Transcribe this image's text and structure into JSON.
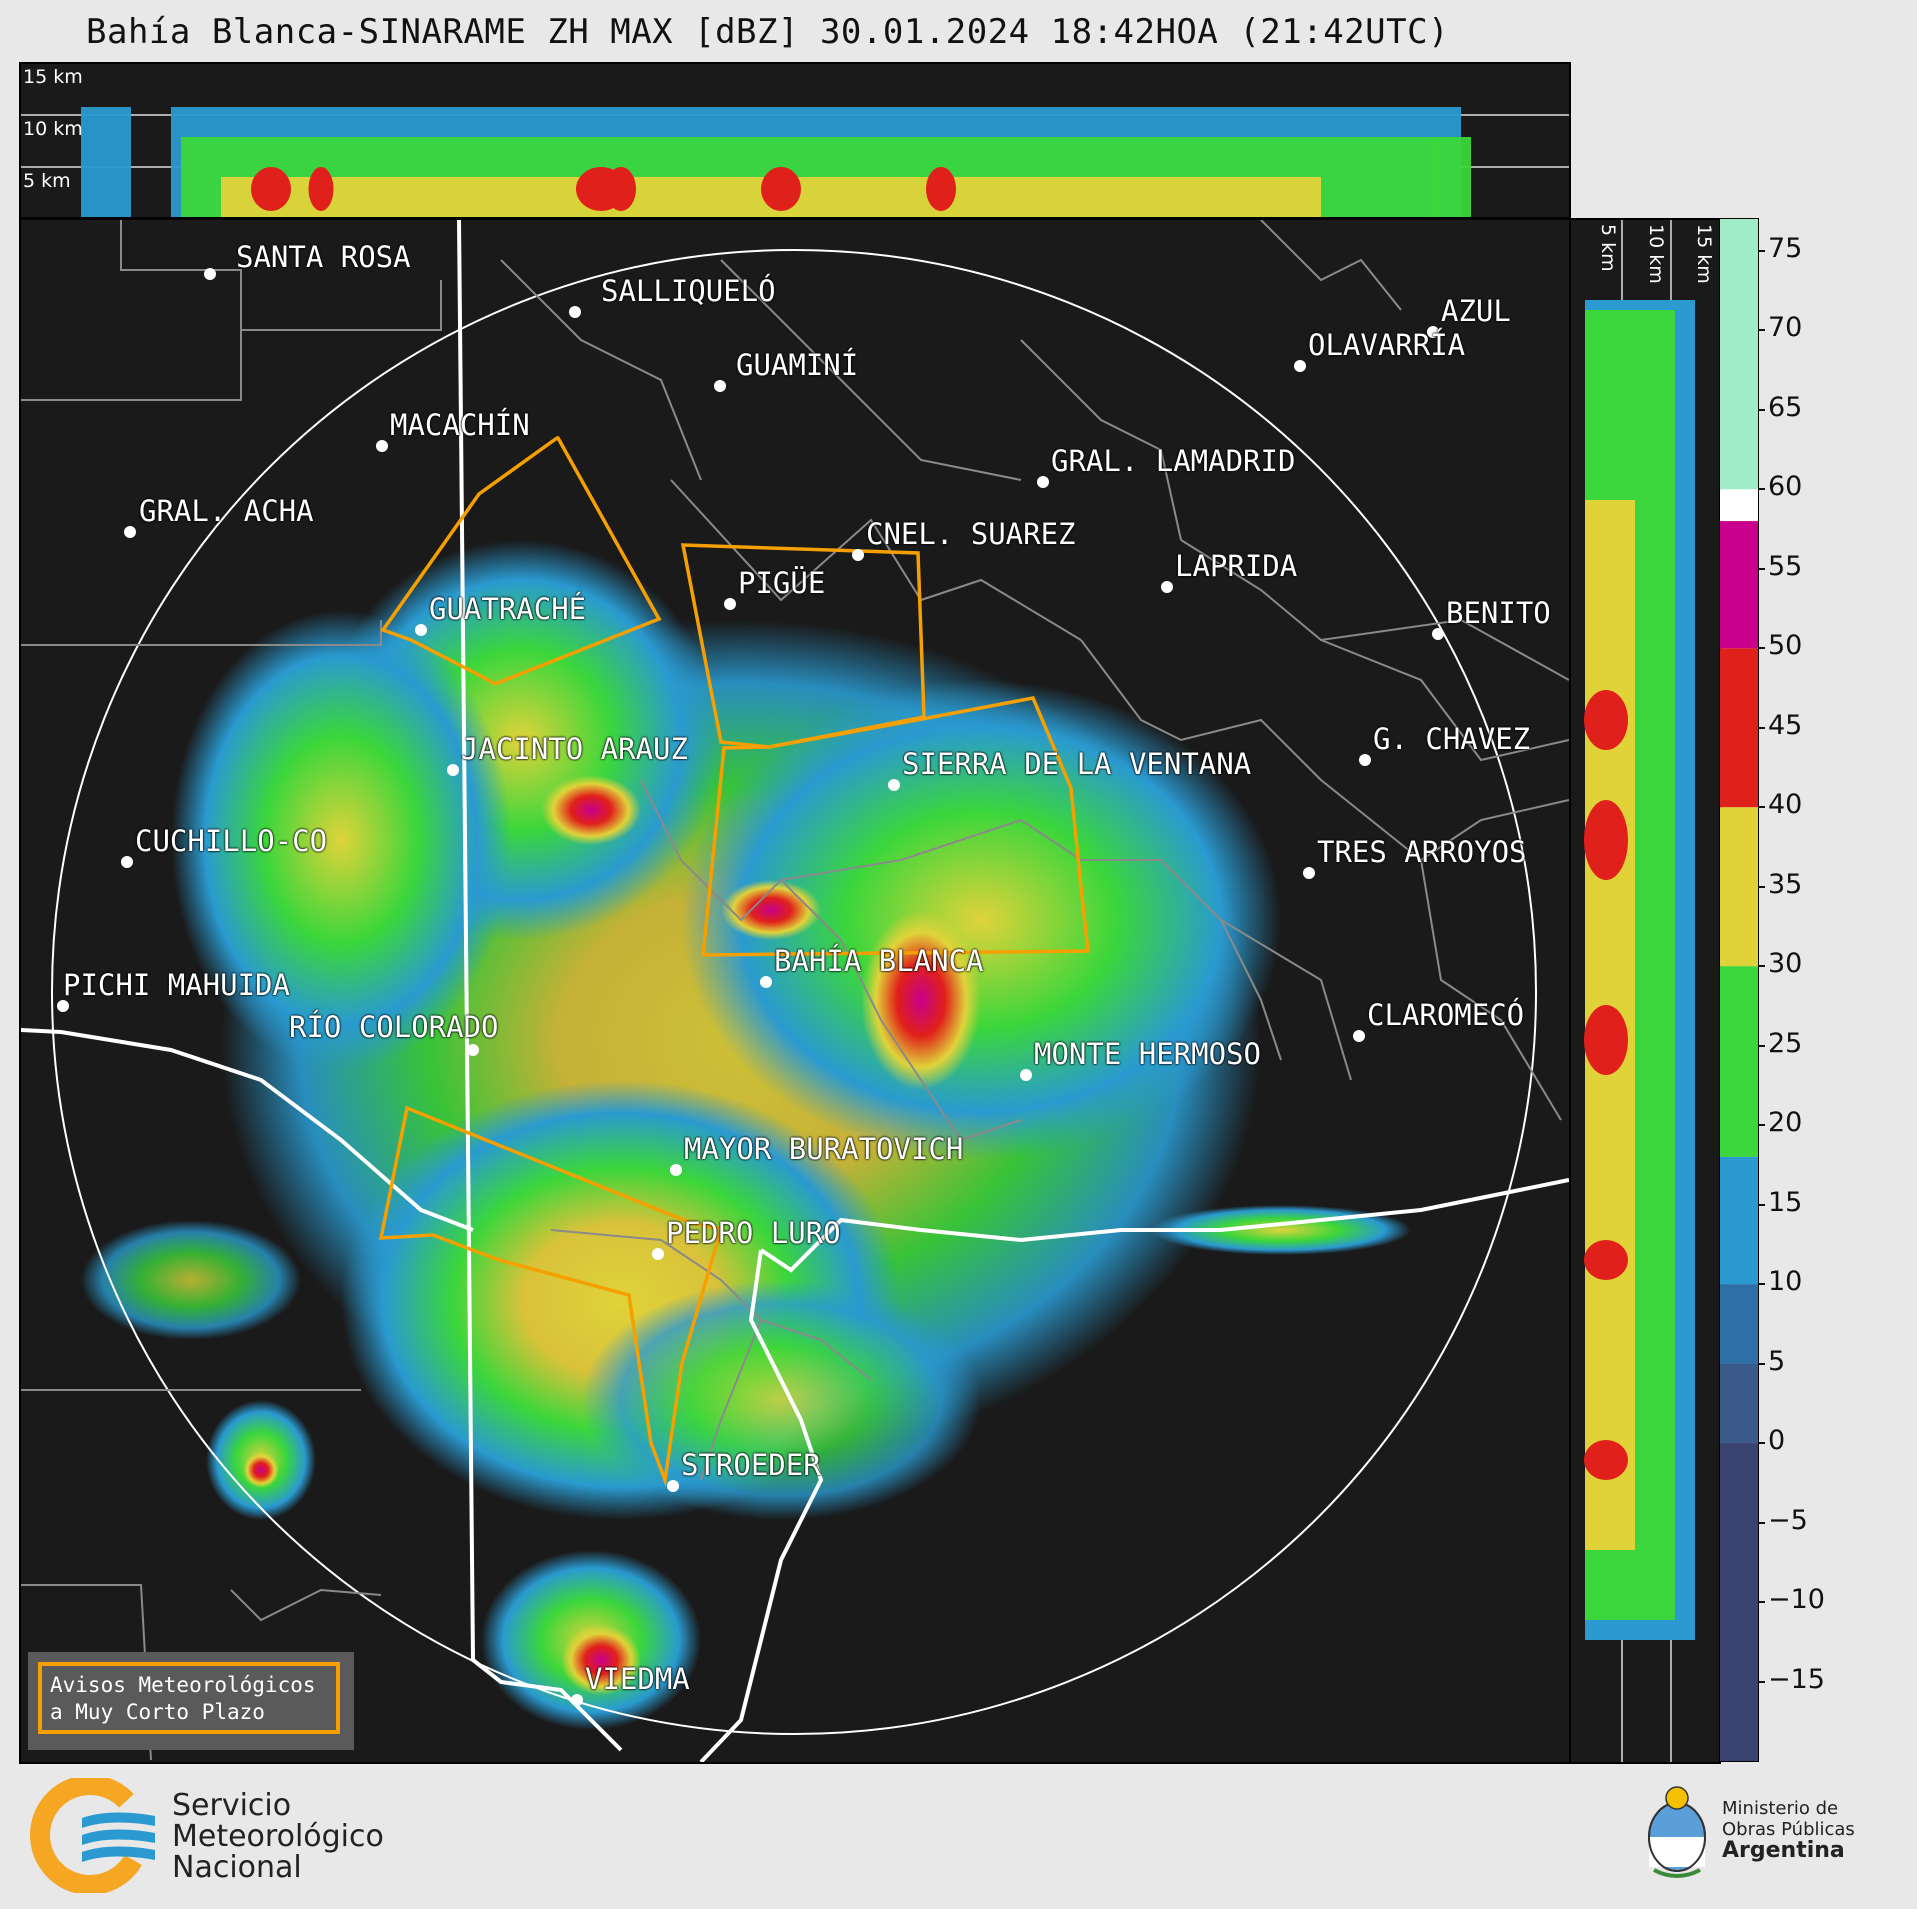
{
  "title": "Bahía Blanca-SINARAME ZH MAX [dBZ] 30.01.2024 18:42HOA (21:42UTC)",
  "top_panel": {
    "height_labels": [
      "15 km",
      "10 km",
      "5 km"
    ]
  },
  "side_panel": {
    "height_labels": [
      "5 km",
      "10 km",
      "15 km"
    ]
  },
  "colorbar": {
    "ticks": [
      "75",
      "70",
      "65",
      "60",
      "55",
      "50",
      "45",
      "40",
      "35",
      "30",
      "25",
      "20",
      "15",
      "10",
      "5",
      "0",
      "−5",
      "−10",
      "−15"
    ],
    "colors": {
      "below_0": "#3a4270",
      "b0_5": "#3a5a8a",
      "b5_10": "#2e6fa8",
      "b10_18": "#2a9ad0",
      "b18_30": "#3bd63b",
      "b30_40": "#e0d33a",
      "b40_50": "#e0201a",
      "b50_58": "#c8008c",
      "b58_60": "#ffffff",
      "above_60": "#a0ecc8"
    }
  },
  "cities": [
    {
      "name": "SANTA ROSA"
    },
    {
      "name": "SALLIQUELÓ"
    },
    {
      "name": "GUAMINÍ"
    },
    {
      "name": "AZUL"
    },
    {
      "name": "OLAVARRÍA"
    },
    {
      "name": "MACACHÍN"
    },
    {
      "name": "GRAL. LAMADRID"
    },
    {
      "name": "GRAL. ACHA"
    },
    {
      "name": "CNEL. SUAREZ"
    },
    {
      "name": "LAPRIDA"
    },
    {
      "name": "PIGÜE"
    },
    {
      "name": "GUATRACHÉ"
    },
    {
      "name": "BENITO"
    },
    {
      "name": "G. CHAVEZ"
    },
    {
      "name": "JACINTO ARAUZ"
    },
    {
      "name": "SIERRA DE LA VENTANA"
    },
    {
      "name": "CUCHILLO-CO"
    },
    {
      "name": "TRES ARROYOS"
    },
    {
      "name": "BAHÍA BLANCA"
    },
    {
      "name": "PICHI MAHUIDA"
    },
    {
      "name": "CLAROMECÓ"
    },
    {
      "name": "RÍO COLORADO"
    },
    {
      "name": "MONTE HERMOSO"
    },
    {
      "name": "MAYOR BURATOVICH"
    },
    {
      "name": "PEDRO LURO"
    },
    {
      "name": "STROEDER"
    },
    {
      "name": "VIEDMA"
    }
  ],
  "legend": {
    "line1": "Avisos Meteorológicos",
    "line2": "a Muy Corto Plazo",
    "border_color": "#f5a000"
  },
  "logo_smn": {
    "line1": "Servicio",
    "line2": "Meteorológico",
    "line3": "Nacional"
  },
  "logo_ministerio": {
    "line1": "Ministerio de",
    "line2": "Obras Públicas",
    "line3": "Argentina"
  },
  "warning_color": "#f5a000"
}
